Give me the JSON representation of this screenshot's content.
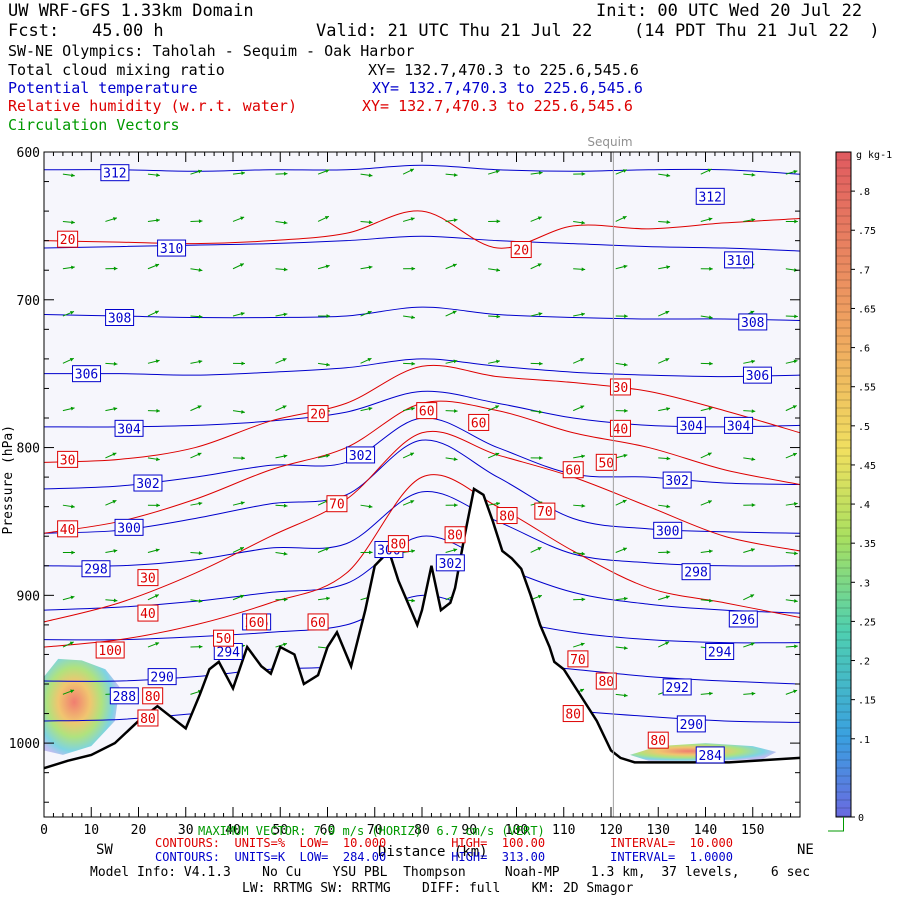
{
  "header": {
    "model_title": "UW WRF-GFS 1.33km Domain",
    "init": "Init: 00 UTC Wed 20 Jul 22",
    "fcst_label": "Fcst:",
    "fcst_value": "45.00 h",
    "valid": "Valid: 21 UTC Thu 21 Jul 22",
    "valid_local": "(14 PDT Thu 21 Jul 22  )",
    "cross_section": "SW-NE Olympics: Taholah - Sequim - Oak Harbor",
    "field1": "Total cloud mixing ratio",
    "field1_xy": "XY= 132.7,470.3 to 225.6,545.6",
    "field2": "Potential temperature",
    "field2_xy": "XY= 132.7,470.3 to 225.6,545.6",
    "field3": "Relative humidity (w.r.t. water)",
    "field3_xy": "XY= 132.7,470.3 to 225.6,545.6",
    "field4": "Circulation Vectors"
  },
  "colors": {
    "black": "#000000",
    "theta": "#0000cc",
    "rh": "#dd0000",
    "vectors": "#009900",
    "plot_bg": "#f6f6fc"
  },
  "footer": {
    "sw": "SW",
    "ne": "NE",
    "xlabel": "Distance (km)",
    "max_vector": "MAXIMUM VECTOR: 7.9 m/s (HORIZ)  6.7 cm/s (VERT)",
    "rh_contours": "CONTOURS:  UNITS=%  LOW=  10.000         HIGH=  100.00         INTERVAL=  10.000",
    "theta_contours": "CONTOURS:  UNITS=K  LOW=  284.00         HIGH=  313.00         INTERVAL=  1.0000",
    "model_info": "Model Info: V4.1.3    No Cu    YSU PBL  Thompson     Noah-MP    1.3 km,  37 levels,    6 sec",
    "model_info2": "LW: RRTMG SW: RRTMG    DIFF: full    KM: 2D Smagor"
  },
  "chart_data": {
    "type": "cross-section",
    "xlabel": "Distance (km)",
    "ylabel": "Pressure (hPa)",
    "xlim": [
      0,
      160
    ],
    "ylim": [
      1050,
      600
    ],
    "x_ticks": [
      0,
      10,
      20,
      30,
      40,
      50,
      60,
      70,
      80,
      90,
      100,
      110,
      120,
      130,
      140,
      150
    ],
    "y_ticks": [
      600,
      700,
      800,
      900,
      1000
    ],
    "y_tick_labels": [
      "600",
      "700",
      "800",
      "900",
      "1000"
    ],
    "marker": {
      "label": "Sequim",
      "x": 120.5
    },
    "colorbar": {
      "unit": "g kg-1",
      "ticks": [
        ".8",
        ".75",
        ".7",
        ".65",
        ".6",
        ".55",
        ".5",
        ".45",
        ".4",
        ".35",
        ".3",
        ".25",
        ".2",
        ".15",
        ".1",
        "0"
      ],
      "range": [
        0,
        0.85
      ]
    },
    "terrain": {
      "x": [
        0,
        5,
        10,
        15,
        20,
        24,
        26,
        30,
        33,
        35,
        37,
        40,
        43,
        46,
        48,
        50,
        53,
        55,
        58,
        60,
        62,
        65,
        68,
        70,
        73,
        75,
        77,
        79,
        80,
        82,
        84,
        86,
        87,
        89,
        91,
        93,
        95,
        97,
        99,
        101,
        103,
        105,
        107,
        108,
        110,
        113,
        117,
        120,
        122,
        125,
        135,
        145,
        150,
        160
      ],
      "y": [
        1017,
        1012,
        1008,
        1000,
        985,
        975,
        980,
        990,
        967,
        950,
        945,
        963,
        935,
        948,
        953,
        935,
        940,
        960,
        954,
        935,
        925,
        948,
        910,
        880,
        870,
        890,
        905,
        920,
        910,
        880,
        910,
        905,
        895,
        860,
        828,
        832,
        850,
        870,
        875,
        882,
        900,
        920,
        935,
        945,
        950,
        965,
        985,
        1005,
        1010,
        1013,
        1013,
        1013,
        1012,
        1010
      ]
    },
    "theta_contours": [
      {
        "level": 312,
        "p": [
          612,
          612,
          613,
          612,
          612,
          609,
          612,
          613,
          612,
          612,
          615
        ],
        "label_x": 15,
        "label_p": 614
      },
      {
        "level": 310,
        "p": [
          665,
          664,
          663,
          662,
          660,
          657,
          660,
          662,
          664,
          665,
          667
        ],
        "label_x": 27,
        "label_p": 665
      },
      {
        "level": 308,
        "p": [
          710,
          711,
          712,
          712,
          711,
          705,
          710,
          712,
          713,
          713,
          714
        ],
        "label_x": 16,
        "label_p": 712
      },
      {
        "level": 306,
        "p": [
          750,
          750,
          751,
          749,
          746,
          740,
          745,
          749,
          751,
          752,
          751
        ],
        "label_x": 9,
        "label_p": 750
      },
      {
        "level": 304,
        "p": [
          786,
          786,
          785,
          782,
          776,
          762,
          770,
          780,
          785,
          786,
          785
        ],
        "label_x": 18,
        "label_p": 787
      },
      {
        "level": 302,
        "p": [
          828,
          826,
          820,
          812,
          810,
          780,
          800,
          818,
          820,
          824,
          825
        ],
        "label_x": 22,
        "label_p": 824
      },
      {
        "level": 300,
        "p": [
          858,
          856,
          848,
          838,
          832,
          795,
          820,
          848,
          855,
          857,
          858
        ],
        "label_x": 18,
        "label_p": 854
      },
      {
        "level": 298,
        "p": [
          880,
          880,
          876,
          868,
          865,
          830,
          850,
          872,
          878,
          880,
          880
        ],
        "label_x": 11,
        "label_p": 882
      },
      {
        "level": 296,
        "p": [
          910,
          908,
          904,
          898,
          892,
          860,
          880,
          898,
          906,
          910,
          912
        ],
        "label_x": 148,
        "label_p": 916
      },
      {
        "level": 294,
        "p": [
          930,
          930,
          928,
          925,
          920,
          900,
          915,
          925,
          930,
          932,
          932
        ],
        "label_x": 143,
        "label_p": 938
      },
      {
        "level": 292,
        "p": [
          958,
          958,
          955,
          950,
          948,
          940,
          945,
          950,
          955,
          958,
          960
        ],
        "label_x": 134,
        "label_p": 962
      },
      {
        "level": 290,
        "p": [
          985,
          984,
          980,
          975,
          970,
          965,
          972,
          978,
          982,
          985,
          986
        ],
        "label_x": 137,
        "label_p": 987
      }
    ],
    "theta_x": [
      0,
      16,
      32,
      48,
      64,
      80,
      96,
      112,
      128,
      144,
      160
    ],
    "theta_extra_labels": [
      {
        "level": 312,
        "x": 141,
        "p": 630
      },
      {
        "level": 310,
        "x": 147,
        "p": 673
      },
      {
        "level": 308,
        "x": 150,
        "p": 715
      },
      {
        "level": 306,
        "x": 151,
        "p": 751
      },
      {
        "level": 304,
        "x": 137,
        "p": 785
      },
      {
        "level": 304,
        "x": 147,
        "p": 785
      },
      {
        "level": 302,
        "x": 67,
        "p": 805
      },
      {
        "level": 302,
        "x": 134,
        "p": 822
      },
      {
        "level": 300,
        "x": 132,
        "p": 856
      },
      {
        "level": 300,
        "x": 73,
        "p": 869
      },
      {
        "level": 302,
        "x": 86,
        "p": 878
      },
      {
        "level": 298,
        "x": 138,
        "p": 884
      },
      {
        "level": 294,
        "x": 39,
        "p": 938
      },
      {
        "level": 296,
        "x": 45,
        "p": 918
      },
      {
        "level": 290,
        "x": 25,
        "p": 955
      },
      {
        "level": 288,
        "x": 17,
        "p": 968
      },
      {
        "level": 284,
        "x": 141,
        "p": 1008
      }
    ],
    "rh_contours": [
      {
        "level": 20,
        "p": [
          660,
          661,
          662,
          660,
          655,
          640,
          665,
          650,
          652,
          648,
          645
        ],
        "label_x": 5,
        "label_p": 659
      },
      {
        "level": 30,
        "p": [
          810,
          808,
          800,
          782,
          770,
          745,
          752,
          756,
          762,
          775,
          790
        ],
        "label_x": 5,
        "label_p": 808
      },
      {
        "level": 40,
        "p": [
          858,
          850,
          835,
          815,
          800,
          770,
          775,
          790,
          800,
          815,
          825
        ],
        "label_x": 5,
        "label_p": 855
      },
      {
        "level": 60,
        "p": [
          918,
          905,
          885,
          860,
          835,
          790,
          805,
          820,
          840,
          860,
          870
        ],
        "label_x": 58,
        "label_p": 918
      },
      {
        "level": 80,
        "p": [
          935,
          930,
          920,
          905,
          885,
          820,
          840,
          870,
          895,
          905,
          915
        ],
        "label_x": 22,
        "label_p": 983
      }
    ],
    "rh_x": [
      0,
      16,
      32,
      48,
      64,
      80,
      96,
      112,
      128,
      144,
      160
    ],
    "rh_extra_labels": [
      {
        "level": 20,
        "x": 101,
        "p": 666
      },
      {
        "level": 20,
        "x": 58,
        "p": 777
      },
      {
        "level": 30,
        "x": 122,
        "p": 759
      },
      {
        "level": 30,
        "x": 22,
        "p": 888
      },
      {
        "level": 40,
        "x": 122,
        "p": 787
      },
      {
        "level": 40,
        "x": 22,
        "p": 912
      },
      {
        "level": 50,
        "x": 119,
        "p": 810
      },
      {
        "level": 50,
        "x": 38,
        "p": 929
      },
      {
        "level": 60,
        "x": 81,
        "p": 775
      },
      {
        "level": 60,
        "x": 92,
        "p": 783
      },
      {
        "level": 60,
        "x": 112,
        "p": 815
      },
      {
        "level": 70,
        "x": 62,
        "p": 838
      },
      {
        "level": 70,
        "x": 106,
        "p": 843
      },
      {
        "level": 70,
        "x": 113,
        "p": 943
      },
      {
        "level": 80,
        "x": 98,
        "p": 846
      },
      {
        "level": 80,
        "x": 75,
        "p": 865
      },
      {
        "level": 80,
        "x": 87,
        "p": 859
      },
      {
        "level": 80,
        "x": 23,
        "p": 968
      },
      {
        "level": 80,
        "x": 119,
        "p": 958
      },
      {
        "level": 80,
        "x": 112,
        "p": 980
      },
      {
        "level": 80,
        "x": 130,
        "p": 998
      },
      {
        "level": 60,
        "x": 45,
        "p": 918
      },
      {
        "level": 100,
        "x": 14,
        "p": 937
      }
    ],
    "cloud_regions": [
      {
        "x": [
          0,
          3,
          8,
          13,
          16,
          15,
          10,
          4,
          0
        ],
        "p": [
          955,
          943,
          944,
          950,
          962,
          985,
          1002,
          1008,
          1005
        ],
        "max": 0.75
      },
      {
        "x": [
          124,
          130,
          140,
          150,
          155,
          152,
          140,
          128,
          124
        ],
        "p": [
          1008,
          1002,
          1000,
          1002,
          1006,
          1011,
          1012,
          1012,
          1008
        ],
        "max": 0.3
      }
    ]
  }
}
